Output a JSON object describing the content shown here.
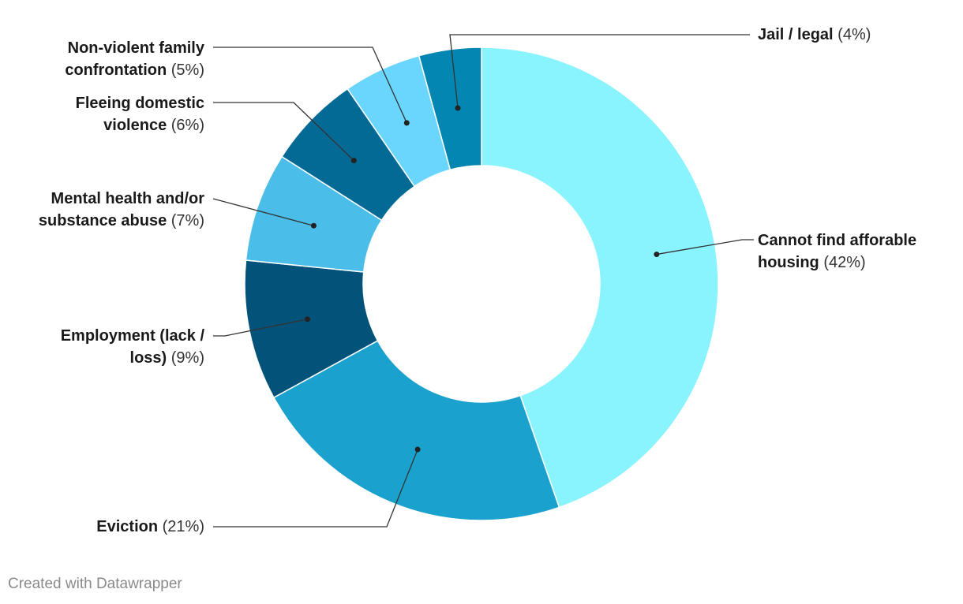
{
  "chart_data": {
    "type": "pie",
    "variant": "donut",
    "title": "",
    "slices": [
      {
        "label": "Cannot find afforable housing",
        "pct_label": "(42%)",
        "value": 42,
        "color": "#8af4fe"
      },
      {
        "label": "Eviction",
        "pct_label": "(21%)",
        "value": 21,
        "color": "#1aa1cd"
      },
      {
        "label": "Employment (lack / loss)",
        "pct_label": "(9%)",
        "value": 9,
        "color": "#03527a"
      },
      {
        "label": "Mental health and/or substance abuse",
        "pct_label": "(7%)",
        "value": 7,
        "color": "#4abde8"
      },
      {
        "label": "Fleeing domestic violence",
        "pct_label": "(6%)",
        "value": 6,
        "color": "#036a95"
      },
      {
        "label": "Non-violent family confrontation",
        "pct_label": "(5%)",
        "value": 5,
        "color": "#6bd6fd"
      },
      {
        "label": "Jail / legal",
        "pct_label": "(4%)",
        "value": 4,
        "color": "#0386b1"
      }
    ]
  },
  "labels": [
    {
      "line1": "Cannot find afforable",
      "line2": "housing",
      "pct": "(42%)"
    },
    {
      "line1": "",
      "line2": "Eviction",
      "pct": "(21%)"
    },
    {
      "line1": "Employment (lack /",
      "line2": "loss)",
      "pct": "(9%)"
    },
    {
      "line1": "Mental health and/or",
      "line2": "substance abuse",
      "pct": "(7%)"
    },
    {
      "line1": "Fleeing domestic",
      "line2": "violence",
      "pct": "(6%)"
    },
    {
      "line1": "Non-violent family",
      "line2": "confrontation",
      "pct": "(5%)"
    },
    {
      "line1": "",
      "line2": "Jail / legal",
      "pct": "(4%)"
    }
  ],
  "credit": "Created with Datawrapper"
}
